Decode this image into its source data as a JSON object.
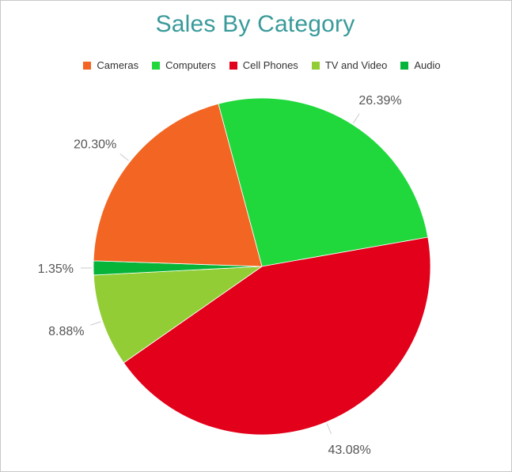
{
  "chart_data": {
    "type": "pie",
    "title": "Sales By Category",
    "legend_position": "top",
    "start_angle_deg": -15,
    "direction": "clockwise",
    "categories": [
      "Cameras",
      "Computers",
      "Cell Phones",
      "TV and Video",
      "Audio"
    ],
    "slices": [
      {
        "name": "Computers",
        "value": 26.39,
        "label": "26.39%",
        "color": "#21d83c"
      },
      {
        "name": "Cell Phones",
        "value": 43.08,
        "label": "43.08%",
        "color": "#e2001a"
      },
      {
        "name": "TV and Video",
        "value": 8.88,
        "label": "8.88%",
        "color": "#92cd36"
      },
      {
        "name": "Audio",
        "value": 1.35,
        "label": "1.35%",
        "color": "#06b43a"
      },
      {
        "name": "Cameras",
        "value": 20.3,
        "label": "20.30%",
        "color": "#f26522"
      }
    ],
    "legend": [
      {
        "name": "Cameras",
        "color": "#f26522"
      },
      {
        "name": "Computers",
        "color": "#21d83c"
      },
      {
        "name": "Cell Phones",
        "color": "#e2001a"
      },
      {
        "name": "TV and Video",
        "color": "#92cd36"
      },
      {
        "name": "Audio",
        "color": "#06b43a"
      }
    ]
  }
}
